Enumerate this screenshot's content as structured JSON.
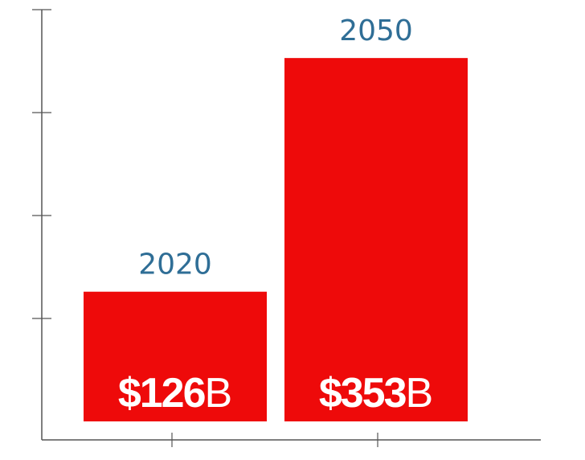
{
  "chart_data": {
    "type": "bar",
    "categories": [
      "2020",
      "2050"
    ],
    "values": [
      126,
      353
    ],
    "value_labels": [
      {
        "prefix": "$",
        "number": "126",
        "unit": "B"
      },
      {
        "prefix": "$",
        "number": "353",
        "unit": "B"
      }
    ],
    "bar_color": "#ee0a0a",
    "label_color": "#2f6e96",
    "value_label_color": "#ffffff",
    "ylim": [
      0,
      400
    ],
    "y_ticks": [
      0,
      100,
      200,
      300,
      400
    ],
    "show_tick_labels": false,
    "grid": false,
    "legend": "none",
    "title": "",
    "xlabel": "",
    "ylabel": ""
  }
}
